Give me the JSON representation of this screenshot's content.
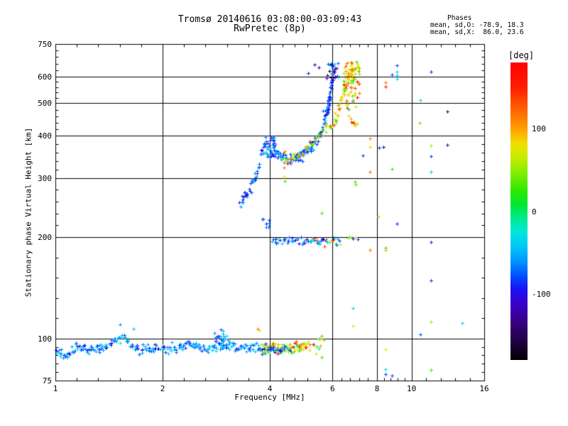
{
  "title": {
    "line1": "Tromsø 20140616 03:08:00-03:09:43",
    "line2": "RwPretec (8p)"
  },
  "stats": {
    "header": "Phases",
    "line_o": "mean, sd,O: -78.9, 18.3",
    "line_x": "mean, sd,X:  86.0, 23.6"
  },
  "axes": {
    "x": {
      "label": "Frequency [MHz]",
      "scale": "log",
      "range": [
        1,
        16
      ],
      "ticks": [
        {
          "v": 1,
          "label": "1"
        },
        {
          "v": 2,
          "label": "2"
        },
        {
          "v": 4,
          "label": "4"
        },
        {
          "v": 6,
          "label": "6"
        },
        {
          "v": 8,
          "label": "8"
        },
        {
          "v": 10,
          "label": "10"
        },
        {
          "v": 16,
          "label": "16"
        }
      ],
      "gridlines": [
        2,
        4,
        6,
        8,
        10
      ]
    },
    "y": {
      "label": "Stationary phase Virtual Height [km]",
      "scale": "log",
      "range": [
        75,
        750
      ],
      "ticks": [
        {
          "v": 75,
          "label": "75"
        },
        {
          "v": 100,
          "label": "100"
        },
        {
          "v": 200,
          "label": "200"
        },
        {
          "v": 300,
          "label": "300"
        },
        {
          "v": 400,
          "label": "400"
        },
        {
          "v": 500,
          "label": "500"
        },
        {
          "v": 600,
          "label": "600"
        },
        {
          "v": 750,
          "label": "750"
        }
      ],
      "gridlines": [
        100,
        200,
        300,
        400,
        500,
        600
      ]
    }
  },
  "colorbar": {
    "label": "[deg]",
    "unit": "deg",
    "range": [
      -180,
      180
    ],
    "ticks": [
      {
        "v": 100,
        "label": "100"
      },
      {
        "v": 0,
        "label": "0"
      },
      {
        "v": -100,
        "label": "-100"
      }
    ],
    "stops": [
      [
        180,
        "#ff0000"
      ],
      [
        150,
        "#ff1e00"
      ],
      [
        120,
        "#ff6a00"
      ],
      [
        100,
        "#ff9e00"
      ],
      [
        82,
        "#f2de00"
      ],
      [
        65,
        "#c8ec00"
      ],
      [
        45,
        "#7cee00"
      ],
      [
        25,
        "#2fe800"
      ],
      [
        8,
        "#00e632"
      ],
      [
        -8,
        "#00e98c"
      ],
      [
        -24,
        "#00e8d8"
      ],
      [
        -42,
        "#00c8f8"
      ],
      [
        -62,
        "#0090ff"
      ],
      [
        -80,
        "#0048ff"
      ],
      [
        -95,
        "#1c10f4"
      ],
      [
        -112,
        "#3a00c8"
      ],
      [
        -132,
        "#38008a"
      ],
      [
        -152,
        "#280052"
      ],
      [
        -168,
        "#120022"
      ],
      [
        -180,
        "#000000"
      ]
    ]
  },
  "chart_data": {
    "type": "scatter",
    "marker": "plus",
    "title": "Tromsø 20140616 03:08:00-03:09:43 RwPretec (8p)",
    "xlabel": "Frequency [MHz]",
    "ylabel": "Stationary phase Virtual Height [km]",
    "xlim": [
      1,
      16
    ],
    "ylim": [
      75,
      750
    ],
    "color_variable": "phase [deg]",
    "phase_stats": {
      "O_mean": -78.9,
      "O_sd": 18.3,
      "X_mean": 86.0,
      "X_sd": 23.6
    },
    "traces": [
      {
        "name": "E-region trace (O, blue)",
        "n": 240,
        "f": [
          1.0,
          3.78
        ],
        "keys": [
          [
            1.0,
            91
          ],
          [
            1.08,
            90
          ],
          [
            1.15,
            95
          ],
          [
            1.25,
            92.5
          ],
          [
            1.42,
            96
          ],
          [
            1.5,
            101
          ],
          [
            1.58,
            99
          ],
          [
            1.65,
            94
          ],
          [
            1.7,
            93
          ],
          [
            1.95,
            93.5
          ],
          [
            2.2,
            94.5
          ],
          [
            2.35,
            97
          ],
          [
            2.5,
            93.5
          ],
          [
            2.75,
            94
          ],
          [
            2.88,
            100
          ],
          [
            3.0,
            95
          ],
          [
            3.2,
            93.5
          ],
          [
            3.5,
            94.5
          ],
          [
            3.78,
            94
          ]
        ],
        "phase": [
          -62,
          20
        ],
        "hjit": 1.5,
        "fjit": 0.002
      },
      {
        "name": "E-region cluster 2.9 MHz",
        "n": 25,
        "f": [
          2.8,
          3.05
        ],
        "hrange": [
          92,
          107
        ],
        "phase": [
          -65,
          18
        ]
      },
      {
        "name": "Es trace (X, yellow-orange)",
        "n": 90,
        "f": [
          3.78,
          5.05
        ],
        "keys": [
          [
            3.78,
            93
          ],
          [
            4.0,
            94
          ],
          [
            4.3,
            93
          ],
          [
            4.6,
            94
          ],
          [
            5.05,
            95
          ]
        ],
        "phase": [
          70,
          55
        ],
        "hjit": 1.8,
        "fjit": 0.002
      },
      {
        "name": "Es trace blue mix",
        "n": 30,
        "f": [
          3.78,
          4.5
        ],
        "keys": [
          [
            3.78,
            93
          ],
          [
            4.5,
            93.5
          ]
        ],
        "phase": [
          -70,
          30
        ],
        "hjit": 1.5,
        "fjit": 0.002
      },
      {
        "name": "Es trace end",
        "n": 12,
        "f": [
          5.05,
          5.62
        ],
        "keys": [
          [
            5.05,
            94
          ],
          [
            5.62,
            95
          ]
        ],
        "phase": [
          75,
          40
        ],
        "hjit": 2.5,
        "fjit": 0.003
      },
      {
        "name": "195 km layer",
        "n": 55,
        "f": [
          4.05,
          6.3
        ],
        "keys": [
          [
            4.05,
            196
          ],
          [
            4.5,
            194
          ],
          [
            5.0,
            195
          ],
          [
            5.5,
            194
          ],
          [
            6.3,
            196
          ]
        ],
        "phase": [
          -55,
          35
        ],
        "hjit": 2.5,
        "fjit": 0.002
      },
      {
        "name": "195 km layer mixed",
        "n": 10,
        "f": [
          5.2,
          6.3
        ],
        "keys": [
          [
            5.2,
            194
          ],
          [
            6.3,
            195
          ]
        ],
        "phase": [
          40,
          90
        ],
        "hjit": 3,
        "fjit": 0.002
      },
      {
        "name": "220 km blob",
        "n": 8,
        "f": [
          3.82,
          4.0
        ],
        "hrange": [
          214,
          229
        ],
        "phase": [
          -70,
          15
        ]
      },
      {
        "name": "F1 rising branch (O)",
        "n": 45,
        "f": [
          3.3,
          3.9
        ],
        "keys": [
          [
            3.3,
            250
          ],
          [
            3.45,
            266
          ],
          [
            3.55,
            282
          ],
          [
            3.65,
            303
          ],
          [
            3.72,
            327
          ],
          [
            3.78,
            352
          ],
          [
            3.85,
            372
          ],
          [
            3.9,
            383
          ]
        ],
        "phase": [
          -73,
          18
        ],
        "hjit": 6,
        "fjit": 0.0025
      },
      {
        "name": "F1 cusp cloud (O)",
        "n": 40,
        "f": [
          3.88,
          4.15
        ],
        "hrange": [
          345,
          398
        ],
        "phase": [
          -75,
          18
        ]
      },
      {
        "name": "F trace dip (O)",
        "n": 50,
        "f": [
          4.1,
          4.95
        ],
        "keys": [
          [
            4.1,
            362
          ],
          [
            4.3,
            348
          ],
          [
            4.55,
            342
          ],
          [
            4.75,
            344
          ],
          [
            4.95,
            352
          ]
        ],
        "phase": [
          -72,
          18
        ],
        "hjit": 6,
        "fjit": 0.003
      },
      {
        "name": "F trace rise (O)",
        "n": 45,
        "f": [
          4.95,
          5.7
        ],
        "keys": [
          [
            4.95,
            352
          ],
          [
            5.2,
            368
          ],
          [
            5.45,
            395
          ],
          [
            5.6,
            418
          ],
          [
            5.7,
            445
          ]
        ],
        "phase": [
          -75,
          18
        ],
        "hjit": 7,
        "fjit": 0.003
      },
      {
        "name": "F asymptote (O)",
        "n": 55,
        "f": [
          5.7,
          6.05
        ],
        "keys": [
          [
            5.7,
            450
          ],
          [
            5.85,
            500
          ],
          [
            5.95,
            558
          ],
          [
            6.0,
            598
          ],
          [
            6.05,
            628
          ]
        ],
        "phase": [
          -78,
          20
        ],
        "hjit": 12,
        "fjit": 0.004
      },
      {
        "name": "F top cloud (O)",
        "n": 25,
        "f": [
          5.78,
          6.25
        ],
        "hrange": [
          585,
          660
        ],
        "phase": [
          -90,
          40
        ]
      },
      {
        "name": "F trace (X)",
        "n": 45,
        "f": [
          4.35,
          6.1
        ],
        "keys": [
          [
            4.35,
            350
          ],
          [
            4.7,
            350
          ],
          [
            5.0,
            362
          ],
          [
            5.3,
            385
          ],
          [
            5.6,
            408
          ],
          [
            5.85,
            428
          ],
          [
            6.1,
            445
          ]
        ],
        "phase": [
          75,
          30
        ],
        "hjit": 7,
        "fjit": 0.003
      },
      {
        "name": "F asymptote (X)",
        "n": 45,
        "f": [
          6.1,
          6.85
        ],
        "keys": [
          [
            6.1,
            445
          ],
          [
            6.3,
            500
          ],
          [
            6.5,
            555
          ],
          [
            6.7,
            600
          ],
          [
            6.85,
            632
          ]
        ],
        "phase": [
          80,
          30
        ],
        "hjit": 12,
        "fjit": 0.004
      },
      {
        "name": "F top cloud (X)",
        "n": 55,
        "f": [
          6.4,
          7.15
        ],
        "hrange": [
          535,
          665
        ],
        "phase": [
          85,
          35
        ]
      },
      {
        "name": "F mid cloud (X)",
        "n": 22,
        "f": [
          6.55,
          7.1
        ],
        "hrange": [
          430,
          535
        ],
        "phase": [
          85,
          40
        ]
      }
    ],
    "isolated_points": [
      [
        5.35,
        650,
        -120
      ],
      [
        5.5,
        640,
        -125
      ],
      [
        5.13,
        615,
        -90
      ],
      [
        8.47,
        577,
        115
      ],
      [
        8.47,
        560,
        165
      ],
      [
        9.1,
        648,
        -80
      ],
      [
        8.8,
        608,
        -80
      ],
      [
        9.11,
        620,
        -38
      ],
      [
        9.11,
        605,
        -38
      ],
      [
        9.11,
        590,
        -38
      ],
      [
        11.35,
        620,
        -85
      ],
      [
        10.6,
        510,
        -30
      ],
      [
        12.6,
        472,
        -130
      ],
      [
        10.55,
        437,
        40
      ],
      [
        7.65,
        393,
        110
      ],
      [
        7.65,
        371,
        85
      ],
      [
        12.6,
        377,
        -115
      ],
      [
        8.35,
        371,
        -120
      ],
      [
        8.1,
        369,
        -85
      ],
      [
        11.35,
        375,
        55
      ],
      [
        11.35,
        348,
        -80
      ],
      [
        7.3,
        350,
        -80
      ],
      [
        11.35,
        313,
        -35
      ],
      [
        8.8,
        319,
        25
      ],
      [
        7.65,
        313,
        115
      ],
      [
        6.95,
        292,
        30
      ],
      [
        6.97,
        287,
        35
      ],
      [
        8.06,
        230,
        55
      ],
      [
        9.1,
        219,
        -85
      ],
      [
        6.62,
        199,
        60
      ],
      [
        6.7,
        200,
        25
      ],
      [
        6.84,
        198,
        -120
      ],
      [
        6.95,
        200,
        55
      ],
      [
        7.08,
        197,
        -80
      ],
      [
        7.65,
        183,
        115
      ],
      [
        8.45,
        186,
        115
      ],
      [
        8.45,
        183,
        40
      ],
      [
        11.35,
        193,
        -85
      ],
      [
        11.35,
        149,
        -85
      ],
      [
        6.84,
        123,
        -35
      ],
      [
        6.84,
        109,
        75
      ],
      [
        11.35,
        112,
        55
      ],
      [
        13.9,
        111,
        -35
      ],
      [
        10.6,
        103,
        -75
      ],
      [
        8.45,
        93,
        80
      ],
      [
        8.45,
        81,
        -35
      ],
      [
        8.47,
        78.5,
        -80
      ],
      [
        8.8,
        77.5,
        -80
      ],
      [
        11.35,
        80.5,
        30
      ],
      [
        5.58,
        102,
        30
      ],
      [
        5.6,
        88,
        30
      ],
      [
        5.55,
        100,
        110
      ],
      [
        5.13,
        98,
        80
      ],
      [
        4.38,
        333,
        120
      ],
      [
        4.39,
        322,
        110
      ],
      [
        4.38,
        303,
        80
      ],
      [
        4.4,
        294,
        30
      ],
      [
        5.58,
        236,
        30
      ],
      [
        3.7,
        107,
        115
      ],
      [
        3.74,
        106,
        90
      ],
      [
        1.66,
        107,
        -45
      ],
      [
        1.52,
        110,
        -60
      ]
    ]
  }
}
